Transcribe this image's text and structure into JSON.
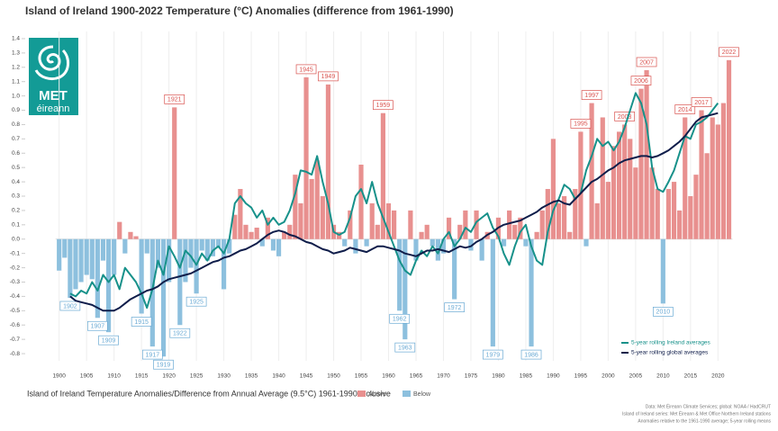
{
  "chart_data": {
    "type": "bar",
    "title": "Island of Ireland 1900-2022 Temperature (°C) Anomalies (difference from 1961-1990)",
    "caption": "Island of Ireland Temperature Anomalies/Difference from Annual Average (9.5°C) 1961-1990 inclusive",
    "logo": {
      "line1": "MET",
      "line2": "éireann"
    },
    "x": [
      1900,
      1901,
      1902,
      1903,
      1904,
      1905,
      1906,
      1907,
      1908,
      1909,
      1910,
      1911,
      1912,
      1913,
      1914,
      1915,
      1916,
      1917,
      1918,
      1919,
      1920,
      1921,
      1922,
      1923,
      1924,
      1925,
      1926,
      1927,
      1928,
      1929,
      1930,
      1931,
      1932,
      1933,
      1934,
      1935,
      1936,
      1937,
      1938,
      1939,
      1940,
      1941,
      1942,
      1943,
      1944,
      1945,
      1946,
      1947,
      1948,
      1949,
      1950,
      1951,
      1952,
      1953,
      1954,
      1955,
      1956,
      1957,
      1958,
      1959,
      1960,
      1961,
      1962,
      1963,
      1964,
      1965,
      1966,
      1967,
      1968,
      1969,
      1970,
      1971,
      1972,
      1973,
      1974,
      1975,
      1976,
      1977,
      1978,
      1979,
      1980,
      1981,
      1982,
      1983,
      1984,
      1985,
      1986,
      1987,
      1988,
      1989,
      1990,
      1991,
      1992,
      1993,
      1994,
      1995,
      1996,
      1997,
      1998,
      1999,
      2000,
      2001,
      2002,
      2003,
      2004,
      2005,
      2006,
      2007,
      2008,
      2009,
      2010,
      2011,
      2012,
      2013,
      2014,
      2015,
      2016,
      2017,
      2018,
      2019,
      2020,
      2021,
      2022
    ],
    "values": [
      -0.22,
      -0.13,
      -0.41,
      -0.35,
      -0.3,
      -0.25,
      -0.28,
      -0.55,
      -0.15,
      -0.65,
      -0.25,
      0.12,
      -0.1,
      0.05,
      0.02,
      -0.52,
      -0.1,
      -0.75,
      -0.2,
      -0.82,
      -0.3,
      0.92,
      -0.6,
      -0.3,
      -0.2,
      -0.38,
      -0.08,
      -0.15,
      -0.12,
      -0.06,
      -0.35,
      -0.1,
      0.17,
      0.35,
      0.1,
      0.05,
      0.08,
      -0.05,
      0.15,
      -0.08,
      -0.12,
      0.05,
      0.1,
      0.45,
      0.25,
      1.13,
      0.42,
      0.55,
      0.3,
      1.08,
      0.1,
      0.05,
      -0.05,
      0.2,
      -0.1,
      0.52,
      -0.05,
      0.25,
      0.1,
      0.88,
      0.25,
      0.2,
      -0.5,
      -0.7,
      0.2,
      -0.15,
      0.05,
      0.1,
      -0.05,
      -0.15,
      -0.1,
      0.15,
      -0.42,
      0.1,
      0.2,
      -0.08,
      0.2,
      -0.15,
      0.05,
      -0.75,
      0.15,
      -0.05,
      0.2,
      0.1,
      0.15,
      -0.05,
      -0.75,
      0.05,
      0.2,
      0.35,
      0.7,
      0.25,
      0.3,
      0.05,
      0.35,
      0.75,
      -0.05,
      0.95,
      0.25,
      0.85,
      0.4,
      0.65,
      0.75,
      0.8,
      0.7,
      0.5,
      1.05,
      1.18,
      0.5,
      0.35,
      -0.45,
      0.35,
      0.4,
      0.2,
      0.85,
      0.3,
      0.45,
      0.9,
      0.6,
      0.85,
      0.8,
      0.95,
      1.25
    ],
    "above": {
      "name": "Above",
      "color": "#e8908f"
    },
    "below": {
      "name": "Below",
      "color": "#8dc0de"
    },
    "labeled_years": [
      1902,
      1907,
      1909,
      1915,
      1917,
      1919,
      1921,
      1922,
      1925,
      1945,
      1949,
      1959,
      1962,
      1963,
      1972,
      1979,
      1986,
      1995,
      1997,
      2003,
      2007,
      2006,
      2010,
      2014,
      2017,
      2022
    ],
    "series": [
      {
        "name": "5-year rolling Ireland averages",
        "type": "line",
        "color": "#17918a",
        "values": [
          null,
          null,
          -0.38,
          -0.4,
          -0.36,
          -0.38,
          -0.3,
          -0.36,
          -0.25,
          -0.3,
          -0.25,
          -0.35,
          -0.2,
          -0.25,
          -0.3,
          -0.38,
          -0.48,
          -0.35,
          -0.15,
          -0.25,
          -0.05,
          -0.12,
          -0.2,
          -0.08,
          -0.12,
          -0.18,
          -0.1,
          -0.15,
          -0.08,
          -0.05,
          -0.1,
          0.0,
          0.25,
          0.3,
          0.25,
          0.22,
          0.15,
          0.2,
          0.1,
          0.15,
          0.1,
          0.12,
          0.2,
          0.32,
          0.48,
          0.47,
          0.45,
          0.58,
          0.4,
          0.25,
          0.05,
          0.03,
          0.05,
          0.15,
          0.3,
          0.35,
          0.25,
          0.4,
          0.25,
          0.15,
          0.05,
          -0.05,
          -0.15,
          -0.22,
          -0.25,
          -0.15,
          -0.08,
          -0.12,
          -0.05,
          -0.1,
          0.0,
          0.05,
          -0.05,
          0.0,
          0.08,
          0.05,
          0.12,
          0.15,
          0.18,
          0.08,
          0.02,
          -0.1,
          -0.18,
          -0.05,
          0.05,
          0.1,
          -0.05,
          -0.15,
          -0.18,
          0.05,
          0.2,
          0.28,
          0.38,
          0.35,
          0.28,
          0.32,
          0.48,
          0.58,
          0.7,
          0.65,
          0.68,
          0.62,
          0.68,
          0.78,
          0.9,
          1.02,
          0.95,
          0.8,
          0.5,
          0.35,
          0.33,
          0.4,
          0.48,
          0.6,
          0.72,
          0.7,
          0.8,
          0.82,
          0.85,
          0.9,
          0.95,
          null,
          null
        ]
      },
      {
        "name": "5-year rolling global averages",
        "type": "line",
        "color": "#0f1d4a",
        "values": [
          null,
          null,
          -0.4,
          -0.43,
          -0.44,
          -0.45,
          -0.46,
          -0.48,
          -0.5,
          -0.5,
          -0.5,
          -0.48,
          -0.45,
          -0.42,
          -0.4,
          -0.38,
          -0.36,
          -0.35,
          -0.33,
          -0.3,
          -0.28,
          -0.27,
          -0.26,
          -0.25,
          -0.24,
          -0.22,
          -0.2,
          -0.18,
          -0.16,
          -0.15,
          -0.13,
          -0.12,
          -0.1,
          -0.08,
          -0.07,
          -0.05,
          -0.03,
          0.0,
          0.03,
          0.05,
          0.06,
          0.05,
          0.03,
          0.02,
          0.0,
          -0.02,
          -0.03,
          -0.05,
          -0.07,
          -0.08,
          -0.1,
          -0.09,
          -0.08,
          -0.06,
          -0.07,
          -0.08,
          -0.09,
          -0.07,
          -0.05,
          -0.05,
          -0.06,
          -0.07,
          -0.08,
          -0.1,
          -0.11,
          -0.12,
          -0.1,
          -0.08,
          -0.08,
          -0.07,
          -0.08,
          -0.09,
          -0.07,
          -0.05,
          -0.06,
          -0.05,
          -0.02,
          0.0,
          0.03,
          0.05,
          0.08,
          0.1,
          0.11,
          0.12,
          0.13,
          0.15,
          0.17,
          0.19,
          0.22,
          0.24,
          0.26,
          0.27,
          0.25,
          0.24,
          0.28,
          0.32,
          0.36,
          0.4,
          0.42,
          0.45,
          0.48,
          0.5,
          0.53,
          0.55,
          0.56,
          0.57,
          0.58,
          0.58,
          0.57,
          0.58,
          0.6,
          0.62,
          0.65,
          0.68,
          0.72,
          0.77,
          0.82,
          0.85,
          0.86,
          0.87,
          0.88,
          null,
          null
        ]
      }
    ],
    "xlim": [
      1893,
      2027
    ],
    "xticks": [
      1900,
      1905,
      1910,
      1915,
      1920,
      1925,
      1930,
      1935,
      1940,
      1945,
      1950,
      1955,
      1960,
      1965,
      1970,
      1975,
      1980,
      1985,
      1990,
      1995,
      2000,
      2005,
      2010,
      2015,
      2020
    ],
    "ylim": [
      -0.85,
      1.45
    ],
    "yticks": [
      1.4,
      1.3,
      1.2,
      1.1,
      {
        "value": 1,
        "label": "1.0"
      },
      0.9,
      0.8,
      0.7,
      0.6,
      0.5,
      0.4,
      0.3,
      0.2,
      0.1,
      {
        "value": 0,
        "label": "0.0"
      },
      -0.1,
      -0.2,
      -0.3,
      -0.4,
      -0.5,
      -0.6,
      -0.7,
      -0.8
    ],
    "grid": true,
    "notes": [
      "Data: Met Éireann Climate Services; global: NOAA / HadCRUT",
      "Island of Ireland series: Met Éireann & Met Office Northern Ireland stations",
      "Anomalies relative to the 1961-1990 average; 5-year rolling means"
    ]
  }
}
